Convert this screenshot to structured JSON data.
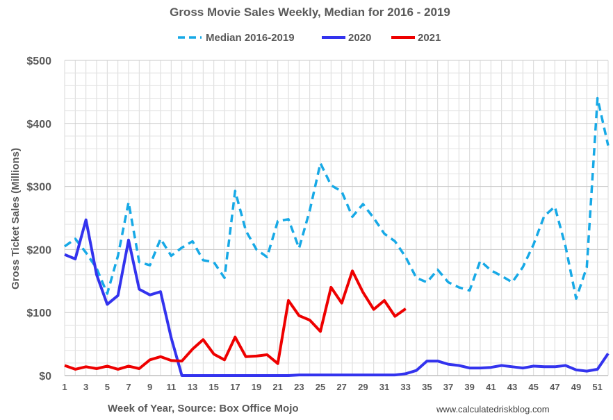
{
  "chart_data": {
    "type": "line",
    "title": "Gross Movie Sales Weekly, Median for 2016 - 2019",
    "xlabel": "Week of Year, Source: Box Office Mojo",
    "ylabel": "Gross Ticket Sales (Millions)",
    "source_note": "www.calculatedriskblog.com",
    "xlim": [
      1,
      52
    ],
    "ylim": [
      0,
      500
    ],
    "y_ticks": [
      0,
      100,
      200,
      300,
      400,
      500
    ],
    "y_tick_labels": [
      "$0",
      "$100",
      "$200",
      "$300",
      "$400",
      "$500"
    ],
    "x_tick_labels": [
      "1",
      "3",
      "5",
      "7",
      "9",
      "11",
      "13",
      "15",
      "17",
      "19",
      "21",
      "23",
      "25",
      "27",
      "29",
      "31",
      "33",
      "35",
      "37",
      "39",
      "41",
      "43",
      "45",
      "47",
      "49",
      "51"
    ],
    "grid": true,
    "legend_position": "top",
    "series": [
      {
        "name": "Median 2016-2019",
        "color": "#17a9e6",
        "style": "dashed",
        "x": [
          1,
          2,
          3,
          4,
          5,
          6,
          7,
          8,
          9,
          10,
          11,
          12,
          13,
          14,
          15,
          16,
          17,
          18,
          19,
          20,
          21,
          22,
          23,
          24,
          25,
          26,
          27,
          28,
          29,
          30,
          31,
          32,
          33,
          34,
          35,
          36,
          37,
          38,
          39,
          40,
          41,
          42,
          43,
          44,
          45,
          46,
          47,
          48,
          49,
          50,
          51,
          52
        ],
        "values": [
          205,
          217,
          195,
          170,
          130,
          190,
          275,
          180,
          175,
          217,
          190,
          203,
          213,
          183,
          180,
          155,
          293,
          230,
          200,
          188,
          245,
          248,
          202,
          262,
          337,
          302,
          292,
          252,
          272,
          250,
          225,
          213,
          188,
          155,
          148,
          168,
          148,
          140,
          135,
          182,
          167,
          158,
          148,
          172,
          208,
          253,
          268,
          205,
          122,
          172,
          440,
          365
        ]
      },
      {
        "name": "2020",
        "color": "#3333ee",
        "style": "solid",
        "x": [
          1,
          2,
          3,
          4,
          5,
          6,
          7,
          8,
          9,
          10,
          11,
          12,
          13,
          14,
          15,
          16,
          17,
          18,
          19,
          20,
          21,
          22,
          23,
          24,
          25,
          26,
          27,
          28,
          29,
          30,
          31,
          32,
          33,
          34,
          35,
          36,
          37,
          38,
          39,
          40,
          41,
          42,
          43,
          44,
          45,
          46,
          47,
          48,
          49,
          50,
          51,
          52
        ],
        "values": [
          192,
          185,
          247,
          160,
          113,
          127,
          215,
          137,
          128,
          133,
          60,
          0,
          0,
          0,
          0,
          0,
          0,
          0,
          0,
          0,
          0,
          0,
          1,
          1,
          1,
          1,
          1,
          1,
          1,
          1,
          1,
          1,
          3,
          8,
          23,
          23,
          18,
          16,
          12,
          12,
          13,
          16,
          14,
          12,
          15,
          14,
          14,
          16,
          9,
          7,
          10,
          35
        ]
      },
      {
        "name": "2021",
        "color": "#ee0000",
        "style": "solid",
        "x": [
          1,
          2,
          3,
          4,
          5,
          6,
          7,
          8,
          9,
          10,
          11,
          12,
          13,
          14,
          15,
          16,
          17,
          18,
          19,
          20,
          21,
          22,
          23,
          24,
          25,
          26,
          27,
          28,
          29,
          30,
          31,
          32,
          33
        ],
        "values": [
          16,
          10,
          14,
          11,
          15,
          10,
          15,
          11,
          25,
          30,
          24,
          23,
          42,
          57,
          34,
          25,
          61,
          30,
          31,
          33,
          19,
          119,
          95,
          88,
          70,
          140,
          115,
          166,
          132,
          105,
          119,
          94,
          106
        ]
      }
    ]
  }
}
